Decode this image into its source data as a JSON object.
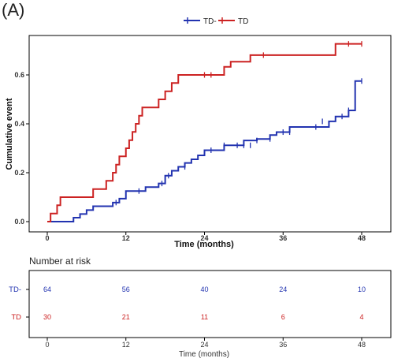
{
  "panel_label": "(A)",
  "chart_data": {
    "type": "line",
    "step": true,
    "legend_position": "top",
    "xlabel": "Time (months)",
    "ylabel": "Cumulative event",
    "xlim": [
      0,
      48
    ],
    "ylim": [
      0,
      0.73
    ],
    "x_ticks": [
      0,
      12,
      24,
      36,
      48
    ],
    "y_ticks": [
      0.0,
      0.2,
      0.4,
      0.6
    ],
    "series": [
      {
        "name": "TD-",
        "color": "#2233b0",
        "steps": [
          [
            0,
            0
          ],
          [
            4,
            0.016
          ],
          [
            5,
            0.031
          ],
          [
            6,
            0.047
          ],
          [
            7,
            0.063
          ],
          [
            10,
            0.078
          ],
          [
            11,
            0.094
          ],
          [
            12,
            0.125
          ],
          [
            15,
            0.141
          ],
          [
            17,
            0.156
          ],
          [
            18,
            0.188
          ],
          [
            19,
            0.208
          ],
          [
            20,
            0.224
          ],
          [
            21,
            0.24
          ],
          [
            22,
            0.255
          ],
          [
            23,
            0.271
          ],
          [
            24,
            0.292
          ],
          [
            27,
            0.312
          ],
          [
            30,
            0.332
          ],
          [
            32,
            0.338
          ],
          [
            34,
            0.354
          ],
          [
            35,
            0.366
          ],
          [
            37,
            0.387
          ],
          [
            43,
            0.41
          ],
          [
            44,
            0.43
          ],
          [
            46,
            0.455
          ],
          [
            47,
            0.575
          ],
          [
            48,
            0.575
          ]
        ],
        "censor": [
          [
            10.5,
            0.078
          ],
          [
            14,
            0.125
          ],
          [
            17.5,
            0.156
          ],
          [
            18.5,
            0.188
          ],
          [
            21,
            0.224
          ],
          [
            25,
            0.292
          ],
          [
            27,
            0.312
          ],
          [
            29,
            0.312
          ],
          [
            30,
            0.312
          ],
          [
            31,
            0.312
          ],
          [
            32,
            0.332
          ],
          [
            34,
            0.338
          ],
          [
            36,
            0.366
          ],
          [
            37,
            0.366
          ],
          [
            41,
            0.387
          ],
          [
            42,
            0.41
          ],
          [
            45,
            0.43
          ],
          [
            46,
            0.455
          ],
          [
            48,
            0.575
          ]
        ]
      },
      {
        "name": "TD",
        "color": "#cc2222",
        "steps": [
          [
            0,
            0
          ],
          [
            0.5,
            0.033
          ],
          [
            1.5,
            0.067
          ],
          [
            2,
            0.1
          ],
          [
            7,
            0.133
          ],
          [
            9,
            0.167
          ],
          [
            10,
            0.2
          ],
          [
            10.5,
            0.233
          ],
          [
            11,
            0.267
          ],
          [
            12,
            0.3
          ],
          [
            12.5,
            0.333
          ],
          [
            13,
            0.367
          ],
          [
            13.5,
            0.4
          ],
          [
            14,
            0.433
          ],
          [
            14.5,
            0.467
          ],
          [
            17,
            0.5
          ],
          [
            18,
            0.533
          ],
          [
            19,
            0.567
          ],
          [
            20,
            0.6
          ],
          [
            27,
            0.633
          ],
          [
            28,
            0.654
          ],
          [
            31,
            0.681
          ],
          [
            44,
            0.727
          ],
          [
            48,
            0.727
          ]
        ],
        "censor": [
          [
            24,
            0.6
          ],
          [
            25,
            0.6
          ],
          [
            33,
            0.681
          ],
          [
            46,
            0.727
          ],
          [
            48,
            0.727
          ]
        ]
      }
    ]
  },
  "risk_table": {
    "title": "Number at risk",
    "x_title": "Time (months)",
    "times": [
      0,
      12,
      24,
      36,
      48
    ],
    "rows": [
      {
        "label": "TD-",
        "color": "#2233b0",
        "values": [
          "64",
          "56",
          "40",
          "24",
          "10"
        ]
      },
      {
        "label": "TD",
        "color": "#cc2222",
        "values": [
          "30",
          "21",
          "11",
          "6",
          "4"
        ]
      }
    ]
  }
}
